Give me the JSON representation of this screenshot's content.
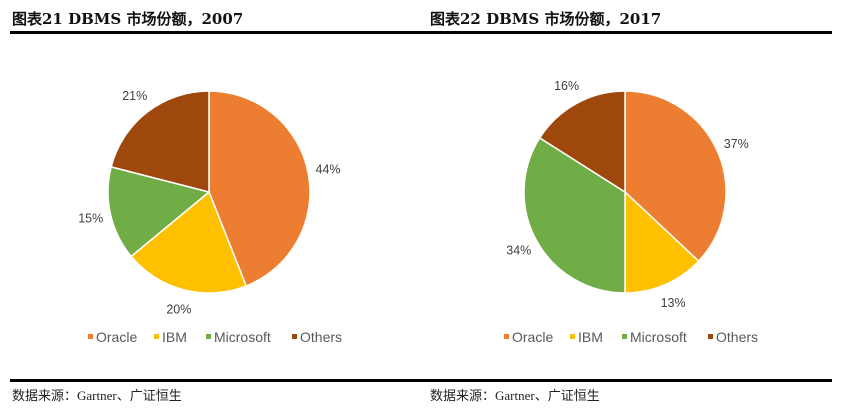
{
  "charts_titles": [
    "图表21  DBMS 市场份额，2007",
    "图表22  DBMS 市场份额，2017"
  ],
  "sources": [
    "数据来源：Gartner、广证恒生",
    "数据来源：Gartner、广证恒生"
  ],
  "colors": {
    "Oracle": "#ED7D31",
    "IBM": "#FFC000",
    "Microsoft": "#70AD47",
    "Others": "#9E480E"
  },
  "chart_data": [
    {
      "type": "pie",
      "title": "图表21  DBMS 市场份额，2007",
      "categories": [
        "Oracle",
        "IBM",
        "Microsoft",
        "Others"
      ],
      "values": [
        44,
        20,
        15,
        21
      ],
      "labels": [
        "44%",
        "20%",
        "15%",
        "21%"
      ],
      "legend": "bottom"
    },
    {
      "type": "pie",
      "title": "图表22  DBMS 市场份额，2017",
      "categories": [
        "Oracle",
        "IBM",
        "Microsoft",
        "Others"
      ],
      "values": [
        37,
        13,
        34,
        16
      ],
      "labels": [
        "37%",
        "13%",
        "34%",
        "16%"
      ],
      "legend": "bottom"
    }
  ]
}
